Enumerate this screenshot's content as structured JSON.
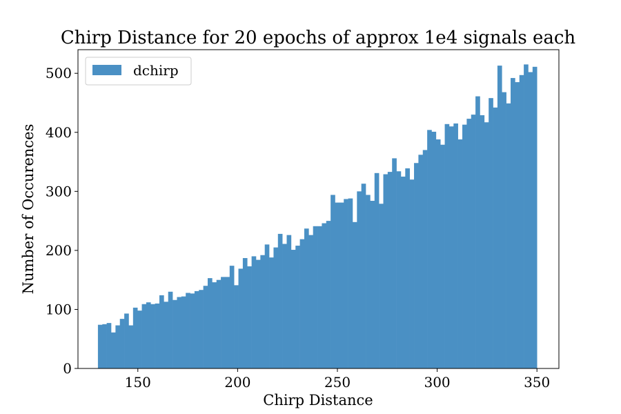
{
  "chart_data": {
    "type": "bar",
    "title": "Chirp Distance for 20 epochs of approx 1e4 signals each",
    "xlabel": "Chirp Distance",
    "ylabel": "Number of Occurences",
    "xlim": [
      120,
      361
    ],
    "ylim": [
      0,
      540
    ],
    "xticks": [
      150,
      200,
      250,
      300,
      350
    ],
    "yticks": [
      0,
      100,
      200,
      300,
      400,
      500
    ],
    "grid": false,
    "legend_position": "top-left",
    "bar_color": "#4a90c4",
    "bin_range": [
      130,
      350
    ],
    "series": [
      {
        "name": "dchirp",
        "values": [
          74,
          75,
          77,
          61,
          73,
          84,
          93,
          73,
          103,
          98,
          109,
          112,
          109,
          110,
          124,
          113,
          130,
          116,
          121,
          122,
          128,
          127,
          131,
          133,
          140,
          153,
          146,
          150,
          155,
          155,
          174,
          141,
          169,
          187,
          173,
          190,
          184,
          192,
          210,
          188,
          205,
          228,
          211,
          226,
          201,
          208,
          219,
          237,
          226,
          241,
          241,
          246,
          250,
          294,
          281,
          281,
          287,
          288,
          248,
          300,
          313,
          294,
          284,
          331,
          279,
          329,
          333,
          356,
          334,
          325,
          339,
          320,
          348,
          362,
          370,
          404,
          401,
          388,
          379,
          414,
          410,
          415,
          388,
          413,
          423,
          430,
          461,
          429,
          417,
          458,
          442,
          513,
          468,
          449,
          492,
          485,
          497,
          515,
          502,
          511
        ]
      }
    ]
  }
}
